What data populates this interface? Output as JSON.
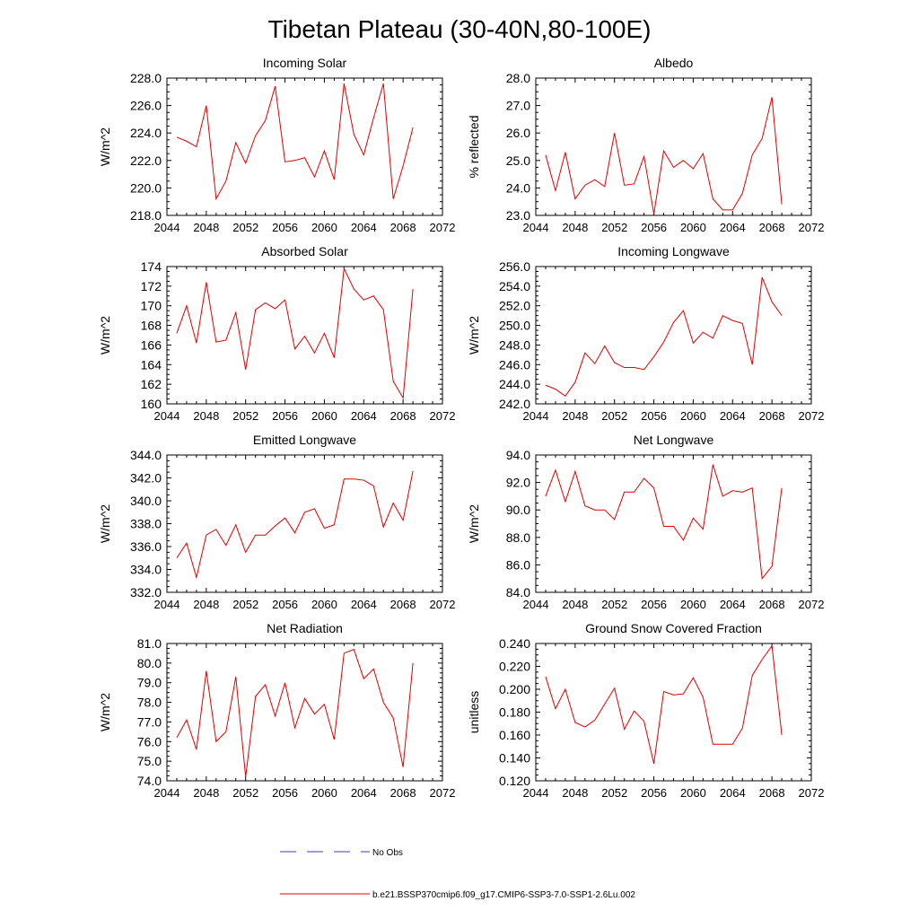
{
  "figure": {
    "title": "Tibetan Plateau (30-40N,80-100E)"
  },
  "legend": {
    "items": [
      {
        "label": "No Obs",
        "color": "#3b3bbf",
        "style": "dashed"
      },
      {
        "label": "b.e21.BSSP370cmip6.f09_g17.CMIP6-SSP3-7.0-SSP1-2.6Lu.002",
        "color": "#e00000",
        "style": "solid"
      }
    ]
  },
  "chart_data": [
    {
      "type": "line",
      "title": "Incoming Solar",
      "ylabel": "W/m^2",
      "xlim": [
        2044,
        2072
      ],
      "ylim": [
        218,
        228
      ],
      "xticks": [
        2044,
        2048,
        2052,
        2056,
        2060,
        2064,
        2068,
        2072
      ],
      "yticks": [
        "218.0",
        "220.0",
        "222.0",
        "224.0",
        "226.0",
        "228.0"
      ],
      "color": "#e00000",
      "x": [
        2045,
        2046,
        2047,
        2048,
        2049,
        2050,
        2051,
        2052,
        2053,
        2054,
        2055,
        2056,
        2057,
        2058,
        2059,
        2060,
        2061,
        2062,
        2063,
        2064,
        2065,
        2066,
        2067,
        2068,
        2069
      ],
      "y": [
        223.7,
        223.4,
        223.0,
        226.0,
        219.2,
        220.5,
        223.3,
        221.8,
        223.8,
        224.9,
        227.4,
        221.9,
        222.0,
        222.2,
        220.8,
        222.7,
        220.6,
        227.6,
        223.9,
        222.4,
        225.1,
        227.6,
        219.2,
        221.6,
        224.4
      ]
    },
    {
      "type": "line",
      "title": "Albedo",
      "ylabel": "% reflected",
      "xlim": [
        2044,
        2072
      ],
      "ylim": [
        23,
        28
      ],
      "xticks": [
        2044,
        2048,
        2052,
        2056,
        2060,
        2064,
        2068,
        2072
      ],
      "yticks": [
        "23.0",
        "24.0",
        "25.0",
        "26.0",
        "27.0",
        "28.0"
      ],
      "color": "#e00000",
      "x": [
        2045,
        2046,
        2047,
        2048,
        2049,
        2050,
        2051,
        2052,
        2053,
        2054,
        2055,
        2056,
        2057,
        2058,
        2059,
        2060,
        2061,
        2062,
        2063,
        2064,
        2065,
        2066,
        2067,
        2068,
        2069
      ],
      "y": [
        25.2,
        23.9,
        25.3,
        23.6,
        24.1,
        24.3,
        24.05,
        26.0,
        24.1,
        24.15,
        25.15,
        23.05,
        25.35,
        24.75,
        25.0,
        24.7,
        25.25,
        23.6,
        23.2,
        23.2,
        23.8,
        25.2,
        25.8,
        27.3,
        23.4
      ]
    },
    {
      "type": "line",
      "title": "Absorbed Solar",
      "ylabel": "W/m^2",
      "xlim": [
        2044,
        2072
      ],
      "ylim": [
        160,
        174
      ],
      "xticks": [
        2044,
        2048,
        2052,
        2056,
        2060,
        2064,
        2068,
        2072
      ],
      "yticks": [
        "160",
        "162",
        "164",
        "166",
        "168",
        "170",
        "172",
        "174"
      ],
      "color": "#e00000",
      "x": [
        2045,
        2046,
        2047,
        2048,
        2049,
        2050,
        2051,
        2052,
        2053,
        2054,
        2055,
        2056,
        2057,
        2058,
        2059,
        2060,
        2061,
        2062,
        2063,
        2064,
        2065,
        2066,
        2067,
        2068,
        2069
      ],
      "y": [
        167.2,
        170.0,
        166.2,
        172.4,
        166.3,
        166.5,
        169.3,
        163.5,
        169.6,
        170.3,
        169.7,
        170.6,
        165.6,
        166.9,
        165.2,
        167.2,
        164.7,
        173.8,
        171.7,
        170.6,
        171.0,
        169.6,
        162.3,
        160.6,
        171.7
      ]
    },
    {
      "type": "line",
      "title": "Incoming Longwave",
      "ylabel": "W/m^2",
      "xlim": [
        2044,
        2072
      ],
      "ylim": [
        242,
        256
      ],
      "xticks": [
        2044,
        2048,
        2052,
        2056,
        2060,
        2064,
        2068,
        2072
      ],
      "yticks": [
        "242.0",
        "244.0",
        "246.0",
        "248.0",
        "250.0",
        "252.0",
        "254.0",
        "256.0"
      ],
      "color": "#e00000",
      "x": [
        2045,
        2046,
        2047,
        2048,
        2049,
        2050,
        2051,
        2052,
        2053,
        2054,
        2055,
        2056,
        2057,
        2058,
        2059,
        2060,
        2061,
        2062,
        2063,
        2064,
        2065,
        2066,
        2067,
        2068,
        2069
      ],
      "y": [
        243.9,
        243.5,
        242.8,
        244.2,
        247.2,
        246.1,
        247.9,
        246.2,
        245.7,
        245.7,
        245.5,
        246.8,
        248.3,
        250.3,
        251.5,
        248.2,
        249.3,
        248.7,
        251.0,
        250.5,
        250.2,
        246.0,
        254.9,
        252.4,
        251.0
      ]
    },
    {
      "type": "line",
      "title": "Emitted Longwave",
      "ylabel": "W/m^2",
      "xlim": [
        2044,
        2072
      ],
      "ylim": [
        332,
        344
      ],
      "xticks": [
        2044,
        2048,
        2052,
        2056,
        2060,
        2064,
        2068,
        2072
      ],
      "yticks": [
        "332.0",
        "334.0",
        "336.0",
        "338.0",
        "340.0",
        "342.0",
        "344.0"
      ],
      "color": "#e00000",
      "x": [
        2045,
        2046,
        2047,
        2048,
        2049,
        2050,
        2051,
        2052,
        2053,
        2054,
        2055,
        2056,
        2057,
        2058,
        2059,
        2060,
        2061,
        2062,
        2063,
        2064,
        2065,
        2066,
        2067,
        2068,
        2069
      ],
      "y": [
        335.0,
        336.3,
        333.3,
        337.0,
        337.5,
        336.1,
        337.9,
        335.5,
        337.0,
        337.0,
        337.8,
        338.5,
        337.2,
        339.0,
        339.3,
        337.6,
        337.9,
        341.9,
        341.9,
        341.8,
        341.3,
        337.7,
        339.8,
        338.3,
        342.6
      ]
    },
    {
      "type": "line",
      "title": "Net Longwave",
      "ylabel": "W/m^2",
      "xlim": [
        2044,
        2072
      ],
      "ylim": [
        84,
        94
      ],
      "xticks": [
        2044,
        2048,
        2052,
        2056,
        2060,
        2064,
        2068,
        2072
      ],
      "yticks": [
        "84.0",
        "86.0",
        "88.0",
        "90.0",
        "92.0",
        "94.0"
      ],
      "color": "#e00000",
      "x": [
        2045,
        2046,
        2047,
        2048,
        2049,
        2050,
        2051,
        2052,
        2053,
        2054,
        2055,
        2056,
        2057,
        2058,
        2059,
        2060,
        2061,
        2062,
        2063,
        2064,
        2065,
        2066,
        2067,
        2068,
        2069
      ],
      "y": [
        91.0,
        92.9,
        90.6,
        92.8,
        90.3,
        90.0,
        90.0,
        89.3,
        91.3,
        91.3,
        92.3,
        91.6,
        88.8,
        88.8,
        87.8,
        89.4,
        88.6,
        93.3,
        91.0,
        91.4,
        91.3,
        91.6,
        85.0,
        85.9,
        91.6
      ]
    },
    {
      "type": "line",
      "title": "Net Radiation",
      "ylabel": "W/m^2",
      "xlim": [
        2044,
        2072
      ],
      "ylim": [
        74,
        81
      ],
      "xticks": [
        2044,
        2048,
        2052,
        2056,
        2060,
        2064,
        2068,
        2072
      ],
      "yticks": [
        "74.0",
        "75.0",
        "76.0",
        "77.0",
        "78.0",
        "79.0",
        "80.0",
        "81.0"
      ],
      "color": "#e00000",
      "x": [
        2045,
        2046,
        2047,
        2048,
        2049,
        2050,
        2051,
        2052,
        2053,
        2054,
        2055,
        2056,
        2057,
        2058,
        2059,
        2060,
        2061,
        2062,
        2063,
        2064,
        2065,
        2066,
        2067,
        2068,
        2069
      ],
      "y": [
        76.2,
        77.1,
        75.6,
        79.6,
        76.0,
        76.5,
        79.3,
        74.2,
        78.3,
        78.9,
        77.3,
        79.0,
        76.7,
        78.2,
        77.4,
        77.9,
        76.1,
        80.5,
        80.7,
        79.2,
        79.7,
        78.0,
        77.2,
        74.7,
        80.0
      ]
    },
    {
      "type": "line",
      "title": "Ground Snow Covered Fraction",
      "ylabel": "unitless",
      "xlim": [
        2044,
        2072
      ],
      "ylim": [
        0.12,
        0.24
      ],
      "xticks": [
        2044,
        2048,
        2052,
        2056,
        2060,
        2064,
        2068,
        2072
      ],
      "yticks": [
        "0.120",
        "0.140",
        "0.160",
        "0.180",
        "0.200",
        "0.220",
        "0.240"
      ],
      "color": "#e00000",
      "x": [
        2045,
        2046,
        2047,
        2048,
        2049,
        2050,
        2051,
        2052,
        2053,
        2054,
        2055,
        2056,
        2057,
        2058,
        2059,
        2060,
        2061,
        2062,
        2063,
        2064,
        2065,
        2066,
        2067,
        2068,
        2069
      ],
      "y": [
        0.211,
        0.183,
        0.2,
        0.171,
        0.167,
        0.173,
        0.187,
        0.201,
        0.165,
        0.181,
        0.172,
        0.135,
        0.198,
        0.195,
        0.196,
        0.21,
        0.193,
        0.152,
        0.152,
        0.152,
        0.166,
        0.212,
        0.226,
        0.238,
        0.16
      ]
    }
  ]
}
